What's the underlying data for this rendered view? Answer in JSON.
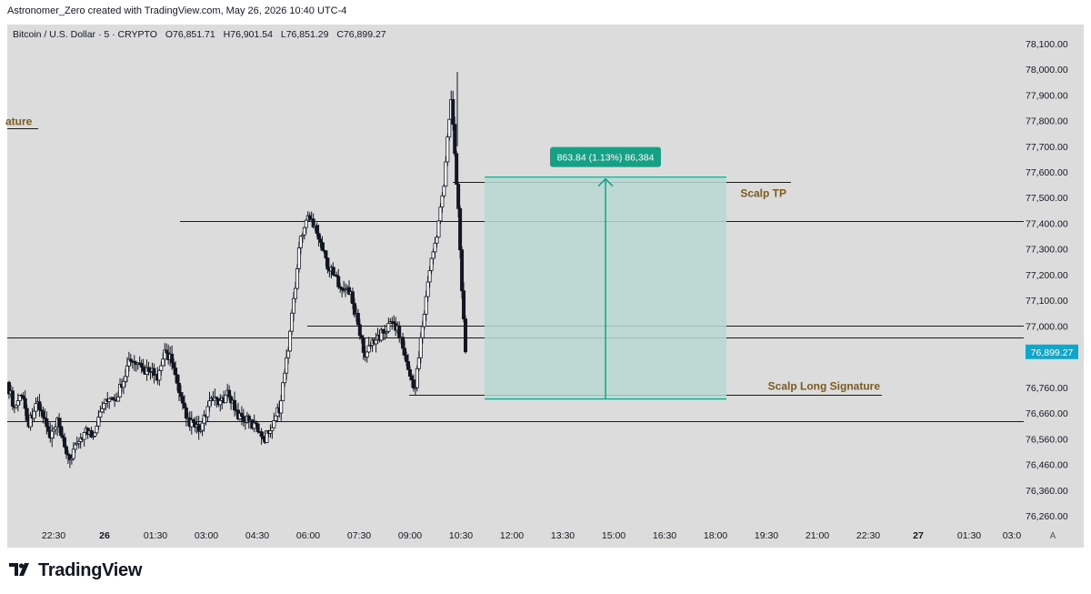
{
  "header": {
    "attribution": "Astronomer_Zero created with TradingView.com, May 26, 2026 10:40 UTC-4"
  },
  "legend": {
    "symbol": "Bitcoin / U.S. Dollar · 5 · CRYPTO",
    "open": "O76,851.71",
    "high": "H76,901.54",
    "low": "L76,851.29",
    "close": "C76,899.27"
  },
  "footer": {
    "logo": "TradingView"
  },
  "colors": {
    "background": "#dcdcdc",
    "candle": "#131722",
    "position_fill": "#b9d8d2",
    "position_accent": "#16a085",
    "label_brown": "#7a5a1e",
    "price_tag": "#0aa8cf"
  },
  "chart_data": {
    "type": "candlestick",
    "title": "Bitcoin / U.S. Dollar · 5 · CRYPTO",
    "ylim": [
      76200,
      78150
    ],
    "y_ticks": [
      "78,100.00",
      "78,000.00",
      "77,900.00",
      "77,800.00",
      "77,700.00",
      "77,600.00",
      "77,500.00",
      "77,400.00",
      "77,300.00",
      "77,200.00",
      "77,100.00",
      "77,000.00",
      "76,760.00",
      "76,660.00",
      "76,560.00",
      "76,460.00",
      "76,360.00",
      "76,260.00"
    ],
    "y_tick_values": [
      78100,
      78000,
      77900,
      77800,
      77700,
      77600,
      77500,
      77400,
      77300,
      77200,
      77100,
      77000,
      76760,
      76660,
      76560,
      76460,
      76360,
      76260
    ],
    "x_ticks": [
      "22:30",
      "26",
      "01:30",
      "03:00",
      "04:30",
      "06:00",
      "07:30",
      "09:00",
      "10:30",
      "12:00",
      "13:30",
      "15:00",
      "16:30",
      "18:00",
      "19:30",
      "21:00",
      "22:30",
      "27",
      "01:30",
      "03:0"
    ],
    "x_tick_bold": [
      false,
      true,
      false,
      false,
      false,
      false,
      false,
      false,
      false,
      false,
      false,
      false,
      false,
      false,
      false,
      false,
      false,
      true,
      false,
      false
    ],
    "axis_corner": "A",
    "last_price": "76,899.27",
    "price_path": [
      [
        0,
        76780
      ],
      [
        2,
        76680
      ],
      [
        4,
        76740
      ],
      [
        6,
        76620
      ],
      [
        8,
        76700
      ],
      [
        10,
        76650
      ],
      [
        12,
        76560
      ],
      [
        14,
        76620
      ],
      [
        16,
        76520
      ],
      [
        18,
        76480
      ],
      [
        20,
        76560
      ],
      [
        22,
        76590
      ],
      [
        24,
        76570
      ],
      [
        26,
        76680
      ],
      [
        28,
        76720
      ],
      [
        30,
        76700
      ],
      [
        32,
        76780
      ],
      [
        34,
        76860
      ],
      [
        36,
        76850
      ],
      [
        38,
        76820
      ],
      [
        40,
        76840
      ],
      [
        42,
        76780
      ],
      [
        44,
        76900
      ],
      [
        46,
        76870
      ],
      [
        48,
        76730
      ],
      [
        50,
        76640
      ],
      [
        52,
        76610
      ],
      [
        54,
        76590
      ],
      [
        56,
        76680
      ],
      [
        58,
        76720
      ],
      [
        60,
        76700
      ],
      [
        62,
        76740
      ],
      [
        64,
        76660
      ],
      [
        66,
        76640
      ],
      [
        68,
        76620
      ],
      [
        70,
        76600
      ],
      [
        72,
        76560
      ],
      [
        74,
        76620
      ],
      [
        76,
        76680
      ],
      [
        78,
        76860
      ],
      [
        80,
        77100
      ],
      [
        82,
        77350
      ],
      [
        84,
        77420
      ],
      [
        86,
        77400
      ],
      [
        88,
        77300
      ],
      [
        90,
        77220
      ],
      [
        92,
        77180
      ],
      [
        94,
        77150
      ],
      [
        96,
        77120
      ],
      [
        98,
        77000
      ],
      [
        100,
        76880
      ],
      [
        102,
        76940
      ],
      [
        104,
        76960
      ],
      [
        106,
        76990
      ],
      [
        108,
        77020
      ],
      [
        110,
        76950
      ],
      [
        112,
        76820
      ],
      [
        114,
        76760
      ],
      [
        116,
        77000
      ],
      [
        118,
        77220
      ],
      [
        120,
        77350
      ],
      [
        122,
        77560
      ],
      [
        124,
        77900
      ],
      [
        126,
        77450
      ],
      [
        128,
        76860
      ]
    ],
    "levels": [
      {
        "price": 77410,
        "label": ""
      },
      {
        "price": 77000,
        "label": ""
      },
      {
        "price": 76955,
        "label": ""
      },
      {
        "price": 76630,
        "label": ""
      },
      {
        "price": 77560,
        "label": "Scalp TP"
      },
      {
        "price": 76730,
        "label": "Scalp Long Signature"
      },
      {
        "price": 77770,
        "label": "ature"
      }
    ],
    "position": {
      "type": "long",
      "entry": 76715,
      "target": 77580,
      "label": "863.84 (1.13%) 86,384"
    }
  }
}
